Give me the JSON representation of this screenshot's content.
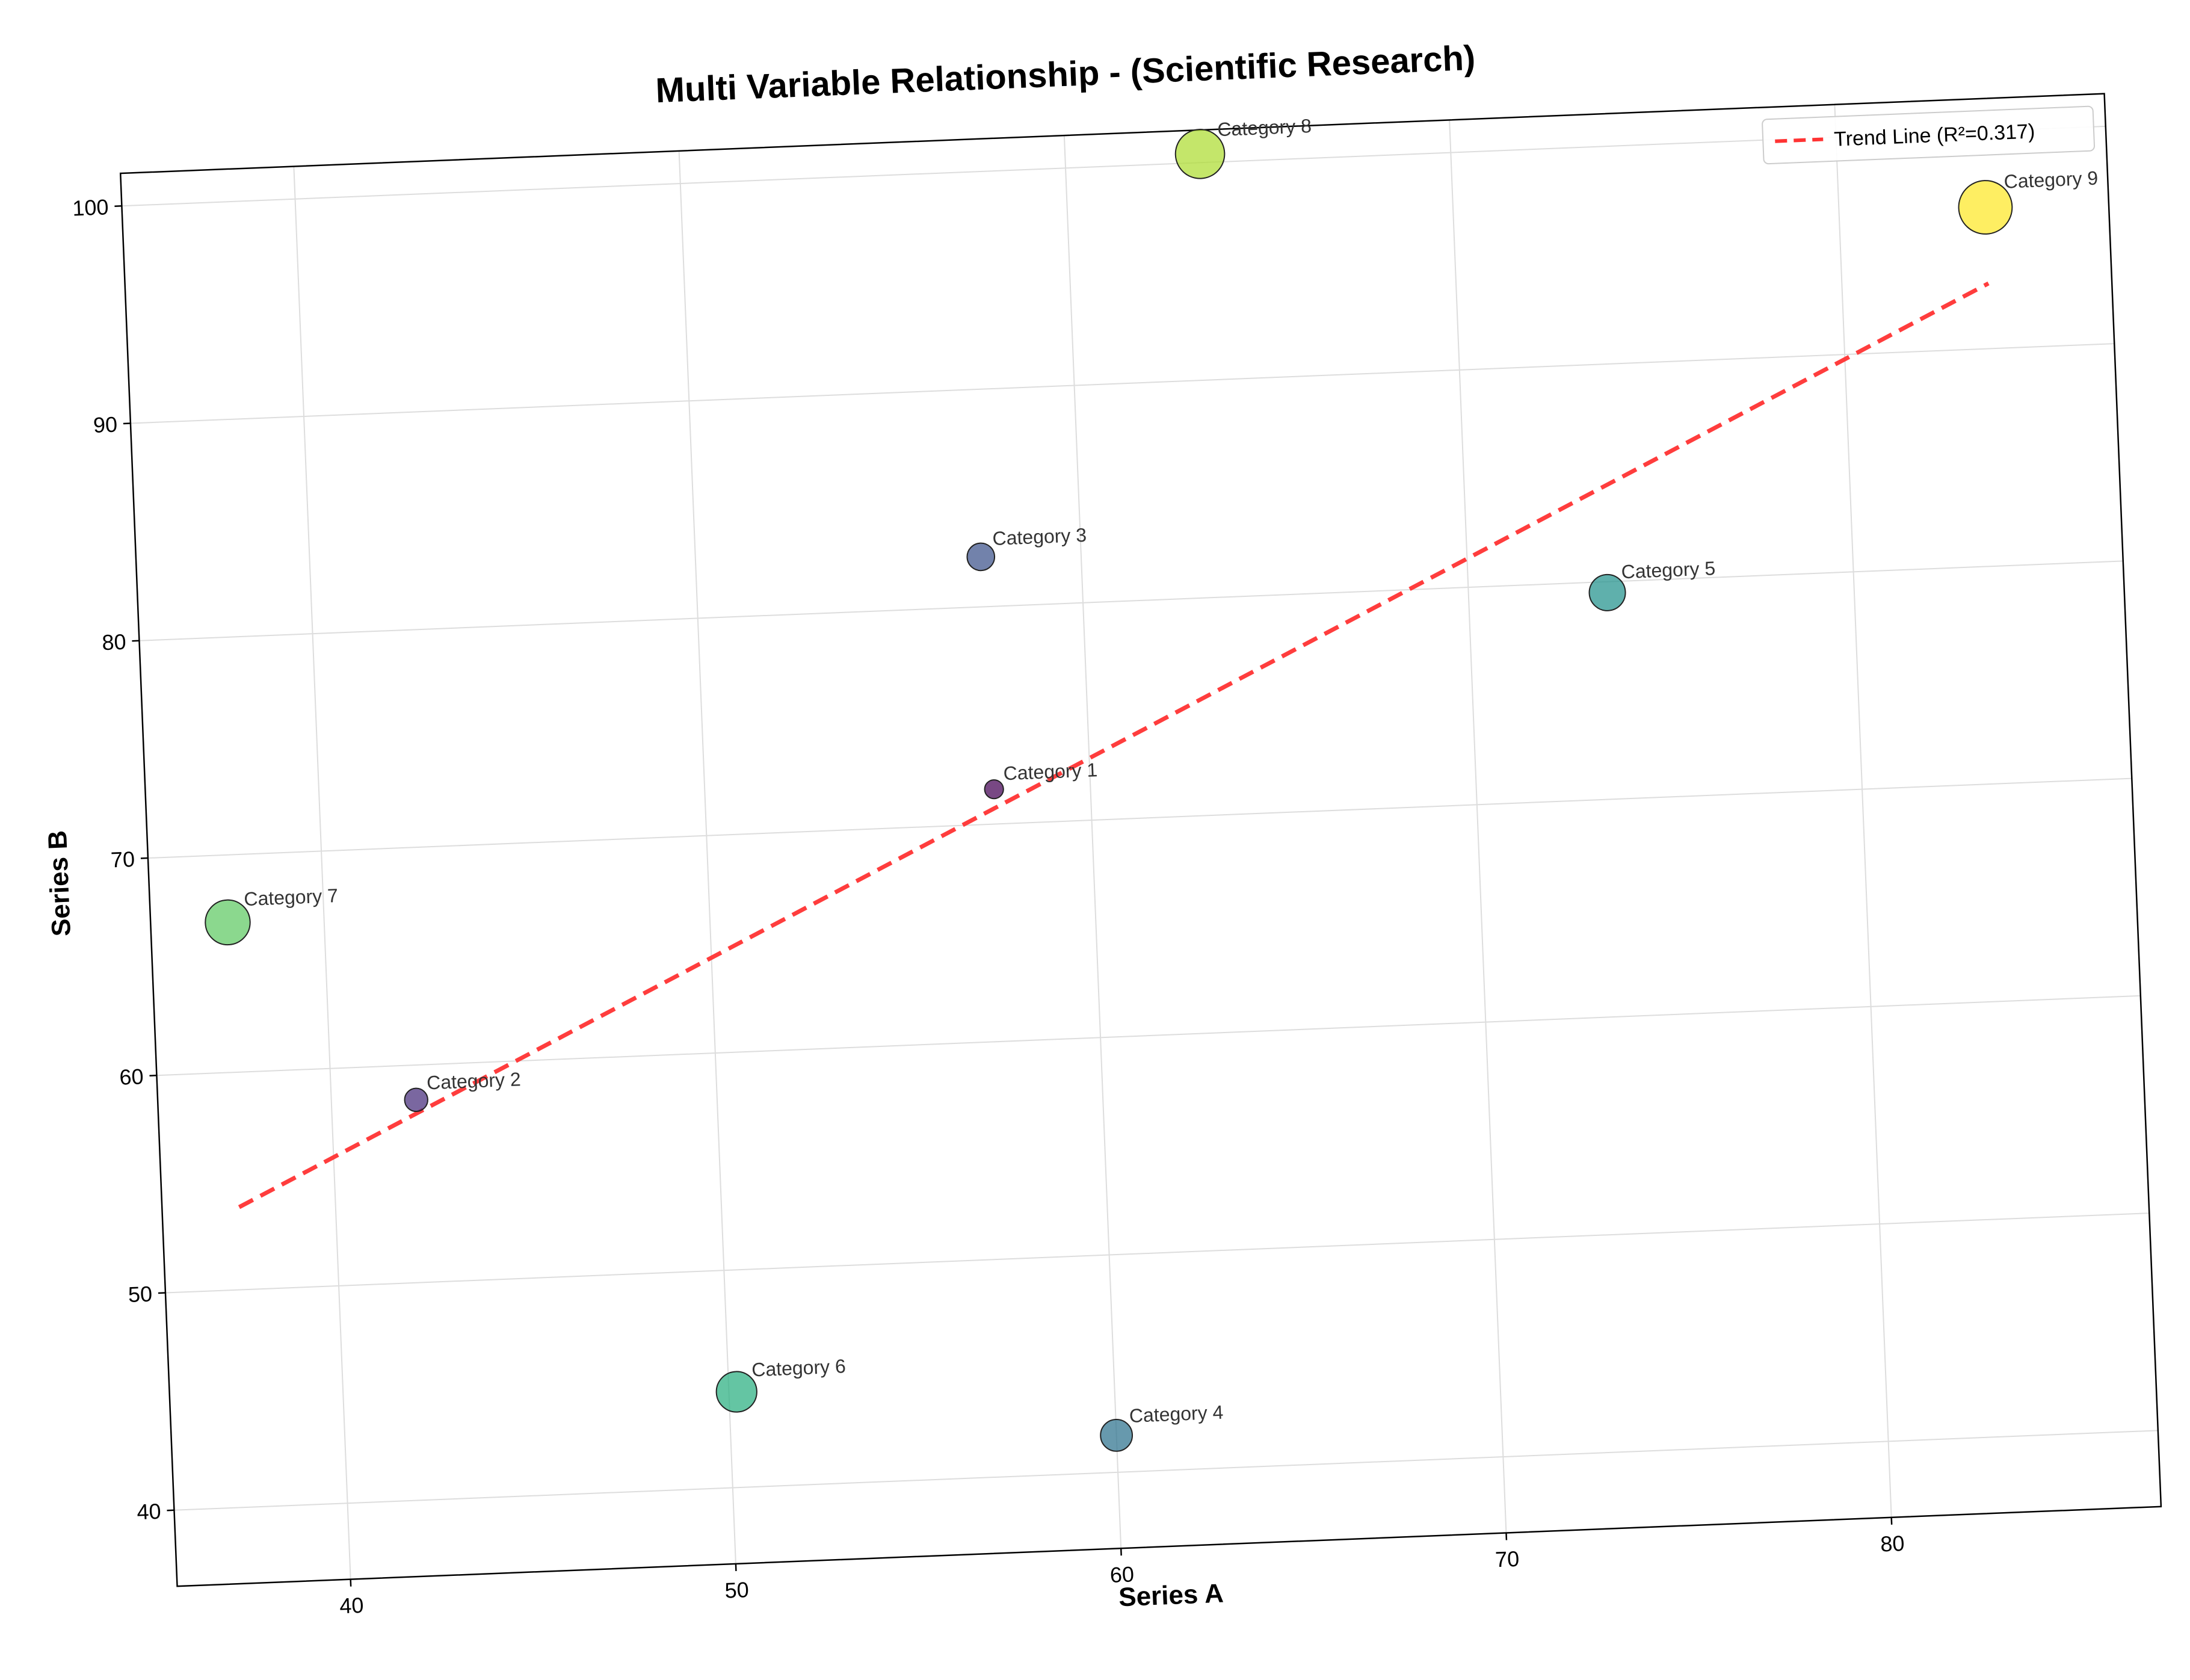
{
  "chart_data": {
    "type": "scatter",
    "title": "Multi Variable Relationship - (Scientific Research)",
    "xlabel": "Series A",
    "ylabel": "Series B",
    "xlim": [
      35.5,
      87
    ],
    "ylim": [
      36.5,
      101.5
    ],
    "xticks": [
      "40",
      "50",
      "60",
      "70",
      "80"
    ],
    "yticks": [
      "40",
      "50",
      "60",
      "70",
      "80",
      "90",
      "100"
    ],
    "grid": true,
    "legend_position": "top-right",
    "points": [
      {
        "label": "Category 1",
        "x": 57.5,
        "y": 71.6,
        "size": 1,
        "color": "#440154"
      },
      {
        "label": "Category 2",
        "x": 42.2,
        "y": 58.4,
        "size": 2,
        "color": "#472d7b"
      },
      {
        "label": "Category 3",
        "x": 57.4,
        "y": 82.3,
        "size": 3,
        "color": "#3b528b"
      },
      {
        "label": "Category 4",
        "x": 60.0,
        "y": 41.7,
        "size": 4,
        "color": "#2c728e"
      },
      {
        "label": "Category 5",
        "x": 73.6,
        "y": 79.5,
        "size": 5,
        "color": "#21918c"
      },
      {
        "label": "Category 6",
        "x": 50.2,
        "y": 44.4,
        "size": 6,
        "color": "#28ae80"
      },
      {
        "label": "Category 7",
        "x": 37.5,
        "y": 66.9,
        "size": 7,
        "color": "#5ec962"
      },
      {
        "label": "Category 8",
        "x": 63.5,
        "y": 100.4,
        "size": 8,
        "color": "#addc30"
      },
      {
        "label": "Category 9",
        "x": 83.8,
        "y": 96.5,
        "size": 9,
        "color": "#fde725"
      }
    ],
    "trend_line": {
      "name": "Trend Line (R²=0.317)",
      "color": "#ff3333",
      "x": [
        37.5,
        83.8
      ],
      "y": [
        53.8,
        93.0
      ]
    }
  }
}
